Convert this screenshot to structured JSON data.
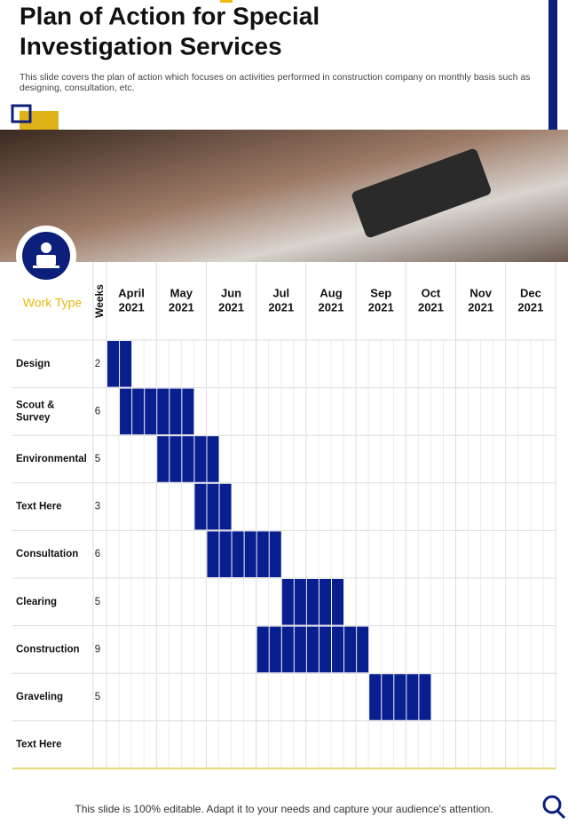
{
  "header": {
    "title_line1": "Plan of Action for Special",
    "title_line2": "Investigation Services",
    "description_line1": "This slide covers the plan of action which focuses on activities performed in construction company on monthly basis such as",
    "description_line2": "designing, consultation, etc."
  },
  "gantt": {
    "work_type_header": "Work Type",
    "weeks_header": "Weeks",
    "months": [
      {
        "name": "April",
        "year": "2021"
      },
      {
        "name": "May",
        "year": "2021"
      },
      {
        "name": "Jun",
        "year": "2021"
      },
      {
        "name": "Jul",
        "year": "2021"
      },
      {
        "name": "Aug",
        "year": "2021"
      },
      {
        "name": "Sep",
        "year": "2021"
      },
      {
        "name": "Oct",
        "year": "2021"
      },
      {
        "name": "Nov",
        "year": "2021"
      },
      {
        "name": "Dec",
        "year": "2021"
      }
    ],
    "rows": [
      {
        "task": "Design",
        "weeks": 2,
        "start_week": 0
      },
      {
        "task": "Scout & Survey",
        "weeks": 6,
        "start_week": 1
      },
      {
        "task": "Environmental",
        "weeks": 5,
        "start_week": 4
      },
      {
        "task": "Text Here",
        "weeks": 3,
        "start_week": 7
      },
      {
        "task": "Consultation",
        "weeks": 6,
        "start_week": 8
      },
      {
        "task": "Clearing",
        "weeks": 5,
        "start_week": 14
      },
      {
        "task": "Construction",
        "weeks": 9,
        "start_week": 12
      },
      {
        "task": "Graveling",
        "weeks": 5,
        "start_week": 21
      },
      {
        "task": "Text Here",
        "weeks": null,
        "start_week": null
      }
    ]
  },
  "footer": {
    "text": "This slide is 100% editable. Adapt it to your needs and capture your audience's attention."
  }
}
